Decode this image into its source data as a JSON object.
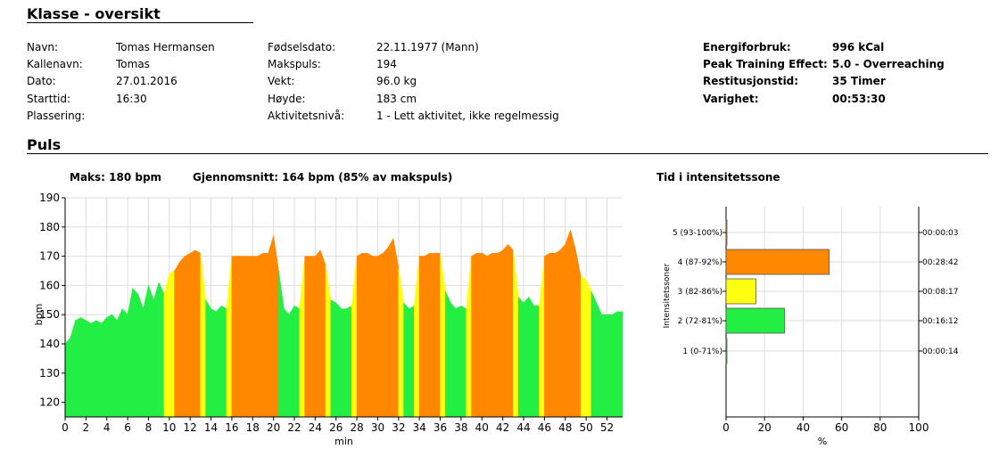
{
  "header": {
    "title": "Klasse - oversikt"
  },
  "info": {
    "col1": [
      {
        "label": "Navn:",
        "value": "Tomas Hermansen"
      },
      {
        "label": "Kallenavn:",
        "value": "Tomas"
      },
      {
        "label": "Dato:",
        "value": "27.01.2016"
      },
      {
        "label": "Starttid:",
        "value": "16:30"
      },
      {
        "label": "Plassering:",
        "value": ""
      }
    ],
    "col2": [
      {
        "label": "Fødselsdato:",
        "value": "22.11.1977 (Mann)"
      },
      {
        "label": "Makspuls:",
        "value": "194"
      },
      {
        "label": "Vekt:",
        "value": "96.0 kg"
      },
      {
        "label": "Høyde:",
        "value": "183 cm"
      },
      {
        "label": "Aktivitetsnivå:",
        "value": "1 - Lett aktivitet, ikke regelmessig"
      }
    ],
    "col3": [
      {
        "label": "Energiforbruk:",
        "value": "996 kCal"
      },
      {
        "label": "Peak Training Effect:",
        "value": "5.0 - Overreaching"
      },
      {
        "label": "Restitusjonstid:",
        "value": "35 Timer"
      },
      {
        "label": "Varighet:",
        "value": "00:53:30"
      }
    ]
  },
  "pulse": {
    "title": "Puls",
    "max_label": "Maks: 180 bpm",
    "avg_label": "Gjennomsnitt: 164 bpm (85% av makspuls)"
  },
  "zones": {
    "title": "Tid i intensitetssone"
  },
  "colors": {
    "green": "#22ee44",
    "yellow": "#ffff11",
    "orange": "#ff8800"
  },
  "chart_data": [
    {
      "type": "area",
      "xlabel": "min",
      "ylabel": "bpm",
      "xlim": [
        0,
        53.5
      ],
      "ylim": [
        115,
        190
      ],
      "xticks": [
        0,
        2,
        4,
        6,
        8,
        10,
        12,
        14,
        16,
        18,
        20,
        22,
        24,
        26,
        28,
        30,
        32,
        34,
        36,
        38,
        40,
        42,
        44,
        46,
        48,
        50,
        52
      ],
      "yticks": [
        120,
        130,
        140,
        150,
        160,
        170,
        180,
        190
      ],
      "grid": true,
      "x": [
        0,
        0.5,
        1,
        1.5,
        2,
        2.5,
        3,
        3.5,
        4,
        4.5,
        5,
        5.5,
        6,
        6.5,
        7,
        7.5,
        8,
        8.5,
        9,
        9.5,
        10,
        10.5,
        11,
        11.5,
        12,
        12.5,
        13,
        13.5,
        14,
        14.5,
        15,
        15.5,
        16,
        16.5,
        17,
        17.5,
        18,
        18.5,
        19,
        19.5,
        20,
        20.5,
        21,
        21.5,
        22,
        22.5,
        23,
        23.5,
        24,
        24.5,
        25,
        25.5,
        26,
        26.5,
        27,
        27.5,
        28,
        28.5,
        29,
        29.5,
        30,
        30.5,
        31,
        31.5,
        32,
        32.5,
        33,
        33.5,
        34,
        34.5,
        35,
        35.5,
        36,
        36.5,
        37,
        37.5,
        38,
        38.5,
        39,
        39.5,
        40,
        40.5,
        41,
        41.5,
        42,
        42.5,
        43,
        43.5,
        44,
        44.5,
        45,
        45.5,
        46,
        46.5,
        47,
        47.5,
        48,
        48.5,
        49,
        49.5,
        50,
        50.5,
        51,
        51.5,
        52,
        52.5,
        53,
        53.5
      ],
      "y": [
        140,
        142,
        148,
        149,
        148,
        147,
        148,
        147,
        149,
        150,
        148,
        152,
        150,
        159,
        157,
        152,
        160,
        155,
        161,
        157,
        164,
        165,
        168,
        170,
        171,
        172,
        171,
        155,
        152,
        151,
        153,
        152,
        170,
        170,
        170,
        170,
        170,
        170,
        171,
        171,
        177,
        165,
        152,
        150,
        153,
        152,
        170,
        170,
        170,
        172,
        167,
        155,
        154,
        152,
        152,
        153,
        170,
        171,
        171,
        170,
        170,
        171,
        173,
        176,
        166,
        154,
        152,
        153,
        170,
        170,
        171,
        171,
        171,
        158,
        154,
        152,
        153,
        152,
        170,
        171,
        171,
        170,
        171,
        171,
        172,
        174,
        172,
        156,
        154,
        156,
        153,
        153,
        170,
        171,
        171,
        172,
        174,
        179,
        172,
        163,
        162,
        158,
        154,
        150,
        150,
        150,
        151,
        151
      ]
    },
    {
      "type": "bar",
      "orientation": "horizontal",
      "ylabel": "Intensitetssoner",
      "xlabel": "%",
      "xlim": [
        0,
        100
      ],
      "xticks": [
        0,
        20,
        40,
        60,
        80,
        100
      ],
      "categories": [
        "5 (93-100%)",
        "4 (87-92%)",
        "3 (82-86%)",
        "2 (72-81%)",
        "1 (0-71%)"
      ],
      "values": [
        0.1,
        53.5,
        15.5,
        30.3,
        0.4
      ],
      "durations": [
        "00:00:03",
        "00:28:42",
        "00:08:17",
        "00:16:12",
        "00:00:14"
      ],
      "grid": true
    }
  ]
}
